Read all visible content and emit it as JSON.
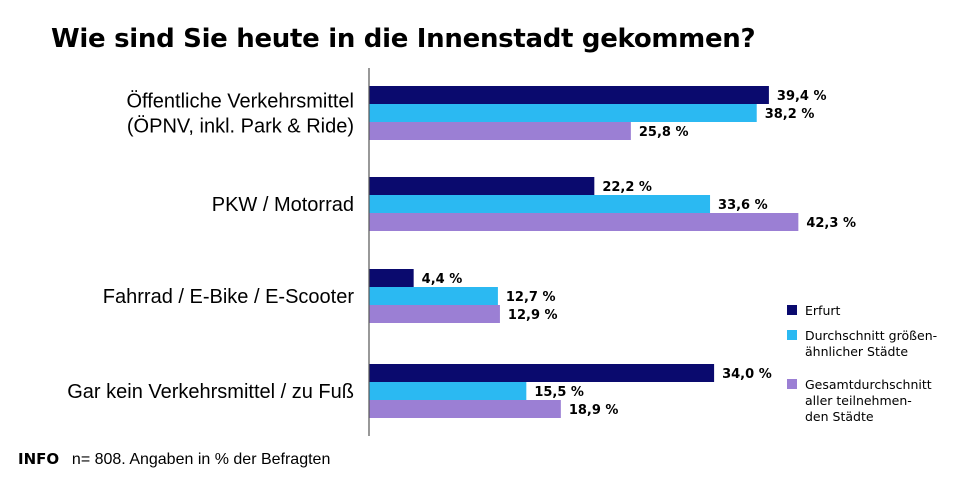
{
  "chart_data": {
    "type": "bar",
    "orientation": "horizontal",
    "title": "Wie sind Sie heute in die Innenstadt gekommen?",
    "categories": [
      [
        "Öffentliche Verkehrsmittel",
        "(ÖPNV, inkl. Park & Ride)"
      ],
      [
        "PKW / Motorrad"
      ],
      [
        "Fahrrad / E-Bike / E-Scooter"
      ],
      [
        "Gar kein Verkehrsmittel / zu Fuß"
      ]
    ],
    "series": [
      {
        "name": [
          "Erfurt"
        ],
        "color": "#0a0a6e",
        "values": [
          39.4,
          22.2,
          4.4,
          34.0
        ],
        "labels": [
          "39,4 %",
          "22,2 %",
          "4,4 %",
          "34,0 %"
        ]
      },
      {
        "name": [
          "Durchschnitt größen-",
          "ähnlicher Städte"
        ],
        "color": "#2bb9f2",
        "values": [
          38.2,
          33.6,
          12.7,
          15.5
        ],
        "labels": [
          "38,2 %",
          "33,6 %",
          "12,7 %",
          "15,5 %"
        ]
      },
      {
        "name": [
          "Gesamtdurchschnitt",
          "aller teilnehmen-",
          "den Städte"
        ],
        "color": "#9b7fd4",
        "values": [
          25.8,
          42.3,
          12.9,
          18.9
        ],
        "labels": [
          "25,8 %",
          "42,3 %",
          "12,9 %",
          "18,9 %"
        ]
      }
    ],
    "xlim": [
      0,
      50
    ],
    "legend_position": "right",
    "grid": false
  },
  "footer": {
    "tag": "INFO",
    "note": "n= 808. Angaben in % der Befragten"
  }
}
